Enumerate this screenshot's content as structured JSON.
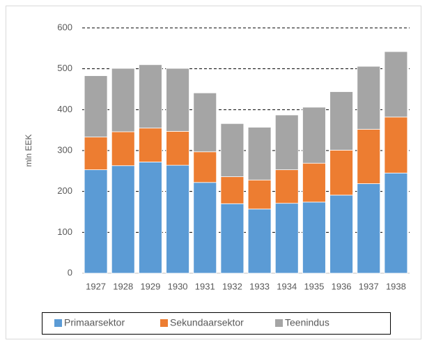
{
  "chart_data": {
    "type": "bar",
    "stacked": true,
    "y_label": "mln EEK",
    "categories": [
      "1927",
      "1928",
      "1929",
      "1930",
      "1931",
      "1932",
      "1933",
      "1934",
      "1935",
      "1936",
      "1937",
      "1938"
    ],
    "series": [
      {
        "name": "Primaarsektor",
        "color": "#5b9bd5",
        "values": [
          253,
          263,
          272,
          264,
          222,
          170,
          157,
          171,
          174,
          191,
          219,
          245
        ]
      },
      {
        "name": "Sekundaarsektor",
        "color": "#ed7d31",
        "values": [
          80,
          83,
          83,
          83,
          75,
          66,
          71,
          82,
          95,
          110,
          133,
          137
        ]
      },
      {
        "name": "Teenindus",
        "color": "#a5a5a5",
        "values": [
          150,
          155,
          155,
          154,
          144,
          130,
          129,
          134,
          137,
          143,
          154,
          160
        ]
      }
    ],
    "ylim": [
      0,
      600
    ],
    "yticks": [
      0,
      100,
      200,
      300,
      400,
      500,
      600
    ],
    "grid": true,
    "legend": "bottom"
  }
}
